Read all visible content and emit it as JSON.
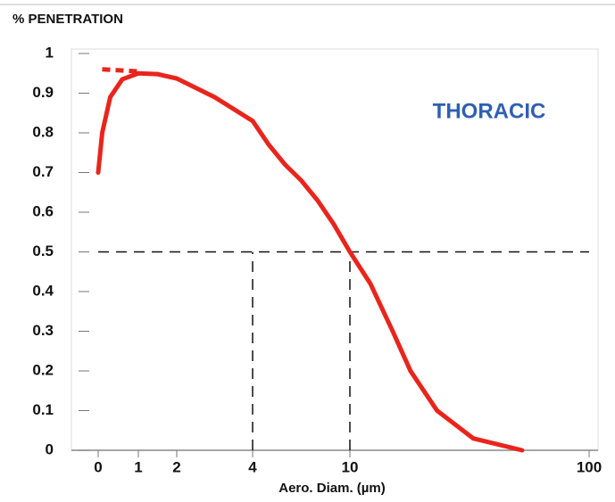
{
  "chart_data": {
    "type": "line",
    "y_axis_label": "% PENETRATION",
    "x_axis_label": "Aero. Diam. (µm)",
    "annotation": "THORACIC",
    "series": [
      {
        "name": null,
        "color": "#e8251c",
        "style": "solid",
        "x": [
          0,
          0.1,
          0.3,
          0.6,
          1,
          1.5,
          2,
          3,
          4,
          5,
          6,
          7,
          8,
          9,
          10,
          17.7,
          26.1,
          32.8,
          42.8,
          56.4,
          74.8
        ],
        "values": [
          0.7,
          0.8,
          0.89,
          0.935,
          0.95,
          0.948,
          0.937,
          0.89,
          0.83,
          0.77,
          0.72,
          0.68,
          0.63,
          0.57,
          0.5,
          0.42,
          0.3,
          0.2,
          0.1,
          0.03,
          0.0
        ]
      },
      {
        "name": null,
        "color": "#e8251c",
        "style": "dashed",
        "x": [
          0.1,
          1
        ],
        "values": [
          0.96,
          0.955
        ]
      }
    ],
    "reference_lines": [
      {
        "x": [
          0,
          100
        ],
        "values": [
          0.5,
          0.5
        ]
      },
      {
        "x": [
          4,
          4
        ],
        "values": [
          0,
          0.5
        ]
      },
      {
        "x": [
          10,
          10
        ],
        "values": [
          0,
          0.5
        ]
      }
    ],
    "xlim": [
      0,
      100
    ],
    "xticks": [
      0,
      1,
      2,
      4,
      10,
      100
    ],
    "ylim": [
      0,
      1
    ],
    "yticks": [
      0,
      0.1,
      0.2,
      0.3,
      0.4,
      0.5,
      0.6,
      0.7,
      0.8,
      0.9,
      1
    ]
  }
}
